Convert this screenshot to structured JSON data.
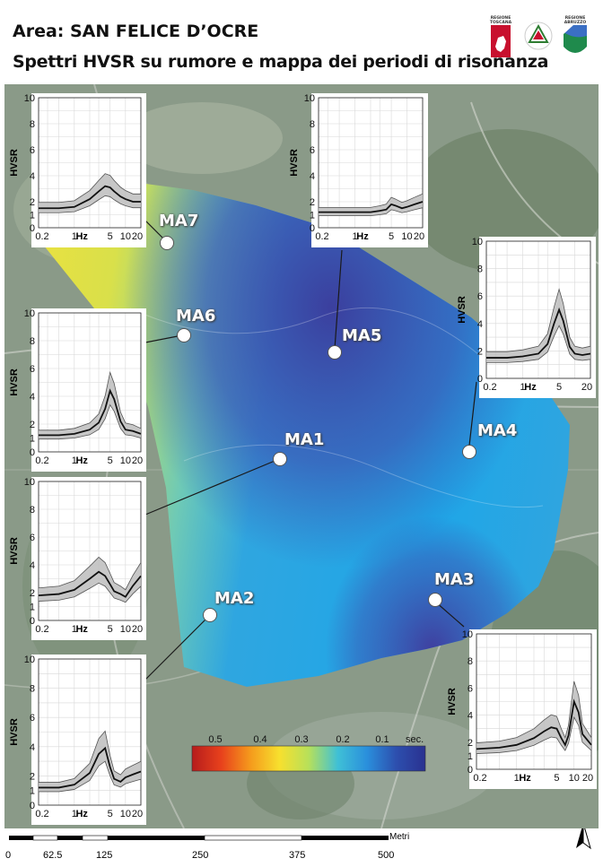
{
  "header": {
    "title_area": "Area: SAN FELICE D’OCRE",
    "title_main": "Spettri HVSR su rumore e mappa dei periodi di risonanza",
    "logos": [
      {
        "name": "regione-toscana-logo",
        "text": "REGIONE TOSCANA",
        "color": "#c8102e"
      },
      {
        "name": "protezione-civile-logo",
        "text": "",
        "color": "#2e7d32"
      },
      {
        "name": "regione-abruzzo-logo",
        "text": "REGIONE ABRUZZO",
        "color": "#1f8a4c"
      }
    ]
  },
  "map": {
    "sites": [
      "MA1",
      "MA2",
      "MA3",
      "MA4",
      "MA5",
      "MA6",
      "MA7"
    ]
  },
  "chart_data": [
    {
      "type": "line",
      "site": "MA7",
      "xlabel": "Hz",
      "ylabel": "HVSR",
      "ylim": [
        0,
        10
      ],
      "xticks": [
        "0.2",
        "1",
        "5",
        "10",
        "20"
      ],
      "yticks": [
        "0",
        "1",
        "2",
        "4",
        "6",
        "8",
        "10"
      ],
      "x": [
        0.2,
        0.5,
        1,
        2,
        3,
        4,
        5,
        6,
        8,
        10,
        14,
        20
      ],
      "y": [
        1.5,
        1.5,
        1.6,
        2.2,
        2.8,
        3.2,
        3.1,
        2.8,
        2.4,
        2.2,
        2.0,
        2.0
      ]
    },
    {
      "type": "line",
      "site": "MA5",
      "xlabel": "Hz",
      "ylabel": "HVSR",
      "ylim": [
        0,
        10
      ],
      "xticks": [
        "0.2",
        "1",
        "5",
        "10",
        "20"
      ],
      "yticks": [
        "0",
        "1",
        "2",
        "4",
        "6",
        "8",
        "10"
      ],
      "x": [
        0.2,
        0.5,
        1,
        2,
        3,
        4,
        5,
        6,
        8,
        10,
        14,
        20
      ],
      "y": [
        1.2,
        1.2,
        1.2,
        1.2,
        1.3,
        1.4,
        1.8,
        1.7,
        1.5,
        1.6,
        1.8,
        2.0
      ]
    },
    {
      "type": "line",
      "site": "MA4",
      "xlabel": "Hz",
      "ylabel": "HVSR",
      "ylim": [
        0,
        10
      ],
      "xticks": [
        "0.2",
        "1",
        "5",
        "20"
      ],
      "yticks": [
        "0",
        "2",
        "4",
        "6",
        "8",
        "10"
      ],
      "x": [
        0.2,
        0.5,
        1,
        2,
        3,
        4,
        5,
        6,
        8,
        10,
        14,
        20
      ],
      "y": [
        1.5,
        1.5,
        1.6,
        1.8,
        2.5,
        4.0,
        5.0,
        4.2,
        2.3,
        1.8,
        1.7,
        1.8
      ]
    },
    {
      "type": "line",
      "site": "MA6",
      "xlabel": "Hz",
      "ylabel": "HVSR",
      "ylim": [
        0,
        10
      ],
      "xticks": [
        "0.2",
        "1",
        "5",
        "10",
        "20"
      ],
      "yticks": [
        "0",
        "1",
        "2",
        "4",
        "6",
        "8",
        "10"
      ],
      "x": [
        0.2,
        0.5,
        1,
        2,
        3,
        4,
        5,
        6,
        8,
        10,
        14,
        20
      ],
      "y": [
        1.2,
        1.2,
        1.3,
        1.6,
        2.1,
        3.1,
        4.4,
        3.8,
        2.2,
        1.6,
        1.5,
        1.3
      ]
    },
    {
      "type": "line",
      "site": "MA1",
      "xlabel": "Hz",
      "ylabel": "HVSR",
      "ylim": [
        0,
        10
      ],
      "xticks": [
        "0.2",
        "1",
        "5",
        "10",
        "20"
      ],
      "yticks": [
        "0",
        "1",
        "2",
        "4",
        "6",
        "8",
        "10"
      ],
      "x": [
        0.2,
        0.5,
        1,
        2,
        3,
        4,
        5,
        6,
        8,
        10,
        14,
        20
      ],
      "y": [
        1.8,
        1.9,
        2.2,
        3.0,
        3.5,
        3.2,
        2.6,
        2.1,
        1.9,
        1.7,
        2.5,
        3.2
      ]
    },
    {
      "type": "line",
      "site": "MA2",
      "xlabel": "Hz",
      "ylabel": "HVSR",
      "ylim": [
        0,
        10
      ],
      "xticks": [
        "0.2",
        "1",
        "5",
        "10",
        "20"
      ],
      "yticks": [
        "0",
        "1",
        "2",
        "4",
        "6",
        "8",
        "10"
      ],
      "x": [
        0.2,
        0.5,
        1,
        2,
        3,
        4,
        5,
        6,
        8,
        10,
        14,
        20
      ],
      "y": [
        1.2,
        1.2,
        1.4,
        2.2,
        3.5,
        3.9,
        2.6,
        1.8,
        1.6,
        1.9,
        2.1,
        2.3
      ]
    },
    {
      "type": "line",
      "site": "MA3",
      "xlabel": "Hz",
      "ylabel": "HVSR",
      "ylim": [
        0,
        10
      ],
      "xticks": [
        "0.2",
        "1",
        "5",
        "10",
        "20"
      ],
      "yticks": [
        "0",
        "1",
        "2",
        "4",
        "6",
        "8",
        "10"
      ],
      "x": [
        0.2,
        0.5,
        1,
        2,
        3,
        4,
        5,
        6,
        7,
        8,
        10,
        12,
        14,
        20
      ],
      "y": [
        1.5,
        1.6,
        1.8,
        2.3,
        2.8,
        3.1,
        3.0,
        2.3,
        1.8,
        2.5,
        5.0,
        4.2,
        2.6,
        1.8
      ]
    }
  ],
  "legend": {
    "ticks": [
      "0.5",
      "0.4",
      "0.3",
      "0.2",
      "0.1"
    ],
    "unit": "sec.",
    "colors": [
      "#b61c1c",
      "#e8411c",
      "#f59a1c",
      "#f7e02e",
      "#b7e05a",
      "#3fc0d6",
      "#2a8fdc",
      "#2d4fae",
      "#2a3190"
    ]
  },
  "scale": {
    "unit": "Metri",
    "ticks": [
      "0",
      "62.5",
      "125",
      "250",
      "375",
      "500"
    ]
  },
  "north_label": "N"
}
